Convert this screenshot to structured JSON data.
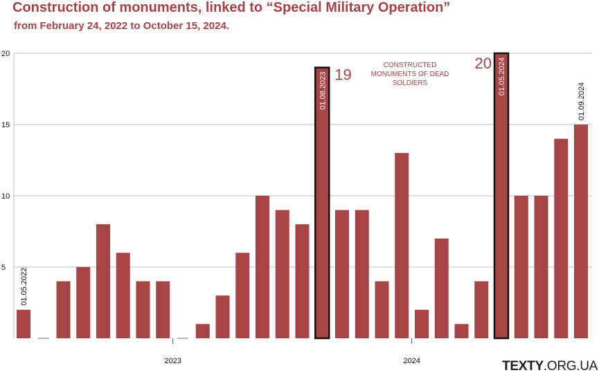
{
  "title": "Construction of monuments, linked to “Special Military Operation”",
  "subtitle": "from February 24, 2022 to October 15, 2024.",
  "brand": {
    "bold": "TEXTY",
    "light": ".ORG.UA"
  },
  "colors": {
    "bar": "#a64446",
    "text_accent": "#a34347",
    "grid": "#bdbdbd",
    "highlight_border": "#111111"
  },
  "chart_data": {
    "type": "bar",
    "title": "Construction of monuments, linked to “Special Military Operation”",
    "subtitle": "from February 24, 2022 to October 15, 2024.",
    "series": [
      {
        "values": [
          2,
          0,
          4,
          5,
          8,
          6,
          4,
          4,
          0,
          1,
          3,
          6,
          10,
          9,
          8,
          19,
          9,
          9,
          4,
          13,
          2,
          7,
          1,
          4,
          20,
          10,
          10,
          14,
          15
        ]
      }
    ],
    "ylim": [
      0,
      20
    ],
    "yticks": [
      5,
      10,
      15,
      20
    ],
    "xtick_labels": [
      {
        "label": "2023",
        "index": 7.5
      },
      {
        "label": "2024",
        "index": 19.5
      }
    ],
    "grid": true,
    "bar_labels": [
      {
        "index": 0,
        "text": "01.05.2022"
      },
      {
        "index": 15,
        "text": "01.08.2023"
      },
      {
        "index": 24,
        "text": "01.05.2024"
      },
      {
        "index": 28,
        "text": "01.09.2024"
      }
    ],
    "highlighted": [
      {
        "index": 15,
        "value_label": "19"
      },
      {
        "index": 24,
        "value_label": "20"
      }
    ],
    "annotation": "CONSTRUCTED MONUMENTS OF DEAD SOLDIERS",
    "annotation_lines": [
      "CONSTRUCTED",
      "MONUMENTS OF DEAD",
      "SOLDIERS"
    ]
  }
}
